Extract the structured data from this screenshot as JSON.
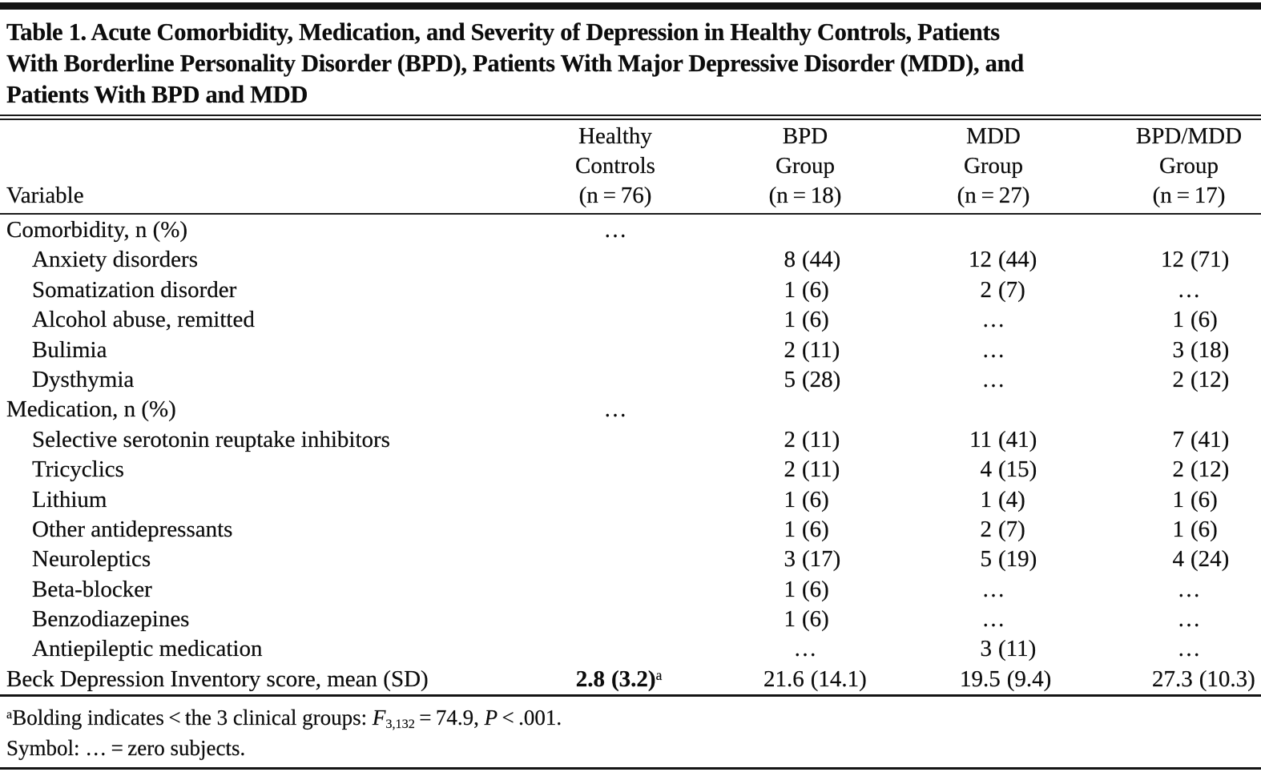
{
  "title": {
    "lines": [
      "Table 1. Acute Comorbidity, Medication, and Severity of Depression in Healthy Controls, Patients",
      "With Borderline Personality Disorder (BPD), Patients With Major Depressive Disorder (MDD), and",
      "Patients With BPD and MDD"
    ]
  },
  "table": {
    "row_header_label": "Variable",
    "columns": [
      {
        "lines": [
          "Healthy",
          "Controls",
          "(n = 76)"
        ]
      },
      {
        "lines": [
          "BPD",
          "Group",
          "(n = 18)"
        ]
      },
      {
        "lines": [
          "MDD",
          "Group",
          "(n = 27)"
        ]
      },
      {
        "lines": [
          "BPD/MDD",
          "Group",
          "(n = 17)"
        ]
      }
    ],
    "ellipsis_symbol": "…",
    "rows": [
      {
        "label": "Comorbidity, n (%)",
        "indent": 0,
        "cells": [
          "…",
          "",
          "",
          ""
        ]
      },
      {
        "label": "Anxiety disorders",
        "indent": 1,
        "cells": [
          "",
          "8 (44)",
          "12 (44)",
          "12 (71)"
        ]
      },
      {
        "label": "Somatization disorder",
        "indent": 1,
        "cells": [
          "",
          "1 (6)",
          "2 (7)",
          "…"
        ]
      },
      {
        "label": "Alcohol abuse, remitted",
        "indent": 1,
        "cells": [
          "",
          "1 (6)",
          "…",
          "1 (6)"
        ]
      },
      {
        "label": "Bulimia",
        "indent": 1,
        "cells": [
          "",
          "2 (11)",
          "…",
          "3 (18)"
        ]
      },
      {
        "label": "Dysthymia",
        "indent": 1,
        "cells": [
          "",
          "5 (28)",
          "…",
          "2 (12)"
        ]
      },
      {
        "label": "Medication, n (%)",
        "indent": 0,
        "cells": [
          "…",
          "",
          "",
          ""
        ]
      },
      {
        "label": "Selective serotonin reuptake inhibitors",
        "indent": 1,
        "cells": [
          "",
          "2 (11)",
          "11 (41)",
          "7 (41)"
        ]
      },
      {
        "label": "Tricyclics",
        "indent": 1,
        "cells": [
          "",
          "2 (11)",
          "4 (15)",
          "2 (12)"
        ]
      },
      {
        "label": "Lithium",
        "indent": 1,
        "cells": [
          "",
          "1 (6)",
          "1 (4)",
          "1 (6)"
        ]
      },
      {
        "label": "Other antidepressants",
        "indent": 1,
        "cells": [
          "",
          "1 (6)",
          "2 (7)",
          "1 (6)"
        ]
      },
      {
        "label": "Neuroleptics",
        "indent": 1,
        "cells": [
          "",
          "3 (17)",
          "5 (19)",
          "4 (24)"
        ]
      },
      {
        "label": "Beta-blocker",
        "indent": 1,
        "cells": [
          "",
          "1 (6)",
          "…",
          "…"
        ]
      },
      {
        "label": "Benzodiazepines",
        "indent": 1,
        "cells": [
          "",
          "1 (6)",
          "…",
          "…"
        ]
      },
      {
        "label": "Antiepileptic medication",
        "indent": 1,
        "cells": [
          "",
          "…",
          "3 (11)",
          "…"
        ]
      },
      {
        "label": "Beck Depression Inventory score, mean (SD)",
        "indent": 0,
        "cells": [
          {
            "text": "2.8 (3.2)",
            "sup": "a",
            "bold": true
          },
          "21.6 (14.1)",
          "19.5 (9.4)",
          "27.3 (10.3)"
        ]
      }
    ]
  },
  "footnotes": [
    {
      "parts": [
        {
          "t": "a",
          "sup": true
        },
        {
          "t": "Bolding indicates < the 3 clinical groups: "
        },
        {
          "t": "F",
          "i": true
        },
        {
          "t": "3,132",
          "sub": true
        },
        {
          "t": " = 74.9, "
        },
        {
          "t": "P",
          "i": true
        },
        {
          "t": " < .001."
        }
      ]
    },
    {
      "parts": [
        {
          "t": "Symbol: … = zero subjects."
        }
      ]
    }
  ]
}
